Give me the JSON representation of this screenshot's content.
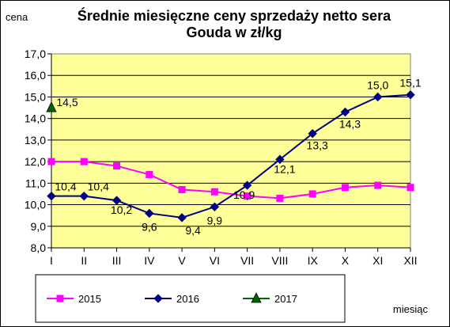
{
  "chart_data": {
    "type": "line",
    "title_lines": [
      "Średnie miesięczne ceny sprzedaży netto sera",
      "Gouda w zł/kg"
    ],
    "ylabel": "cena",
    "xlabel": "miesiąc",
    "categories": [
      "I",
      "II",
      "III",
      "IV",
      "V",
      "VI",
      "VII",
      "VIII",
      "IX",
      "X",
      "XI",
      "XII"
    ],
    "ylim": [
      8.0,
      17.0
    ],
    "yticks": [
      8.0,
      9.0,
      10.0,
      11.0,
      12.0,
      13.0,
      14.0,
      15.0,
      16.0,
      17.0
    ],
    "ytick_labels": [
      "8,0",
      "9,0",
      "10,0",
      "11,0",
      "12,0",
      "13,0",
      "14,0",
      "15,0",
      "16,0",
      "17,0"
    ],
    "grid": "horizontal",
    "plot_background": "#ffff99",
    "legend_position": "bottom",
    "series": [
      {
        "name": "2015",
        "color": "#ff00ff",
        "marker": "square",
        "values": [
          12.0,
          12.0,
          11.8,
          11.4,
          10.7,
          10.6,
          10.4,
          10.3,
          10.5,
          10.8,
          10.9,
          10.8
        ],
        "labels": []
      },
      {
        "name": "2016",
        "color": "#000080",
        "marker": "diamond",
        "values": [
          10.4,
          10.4,
          10.2,
          9.6,
          9.4,
          9.9,
          10.9,
          12.1,
          13.3,
          14.3,
          15.0,
          15.1
        ],
        "labels": [
          "10,4",
          "10,4",
          "10,2",
          "9,6",
          "9,4",
          "9,9",
          "10,9",
          "12,1",
          "13,3",
          "14,3",
          "15,0",
          "15,1"
        ]
      },
      {
        "name": "2017",
        "color": "#006600",
        "marker": "triangle",
        "values": [
          14.5,
          null,
          null,
          null,
          null,
          null,
          null,
          null,
          null,
          null,
          null,
          null
        ],
        "labels": [
          "14,5"
        ]
      }
    ]
  }
}
